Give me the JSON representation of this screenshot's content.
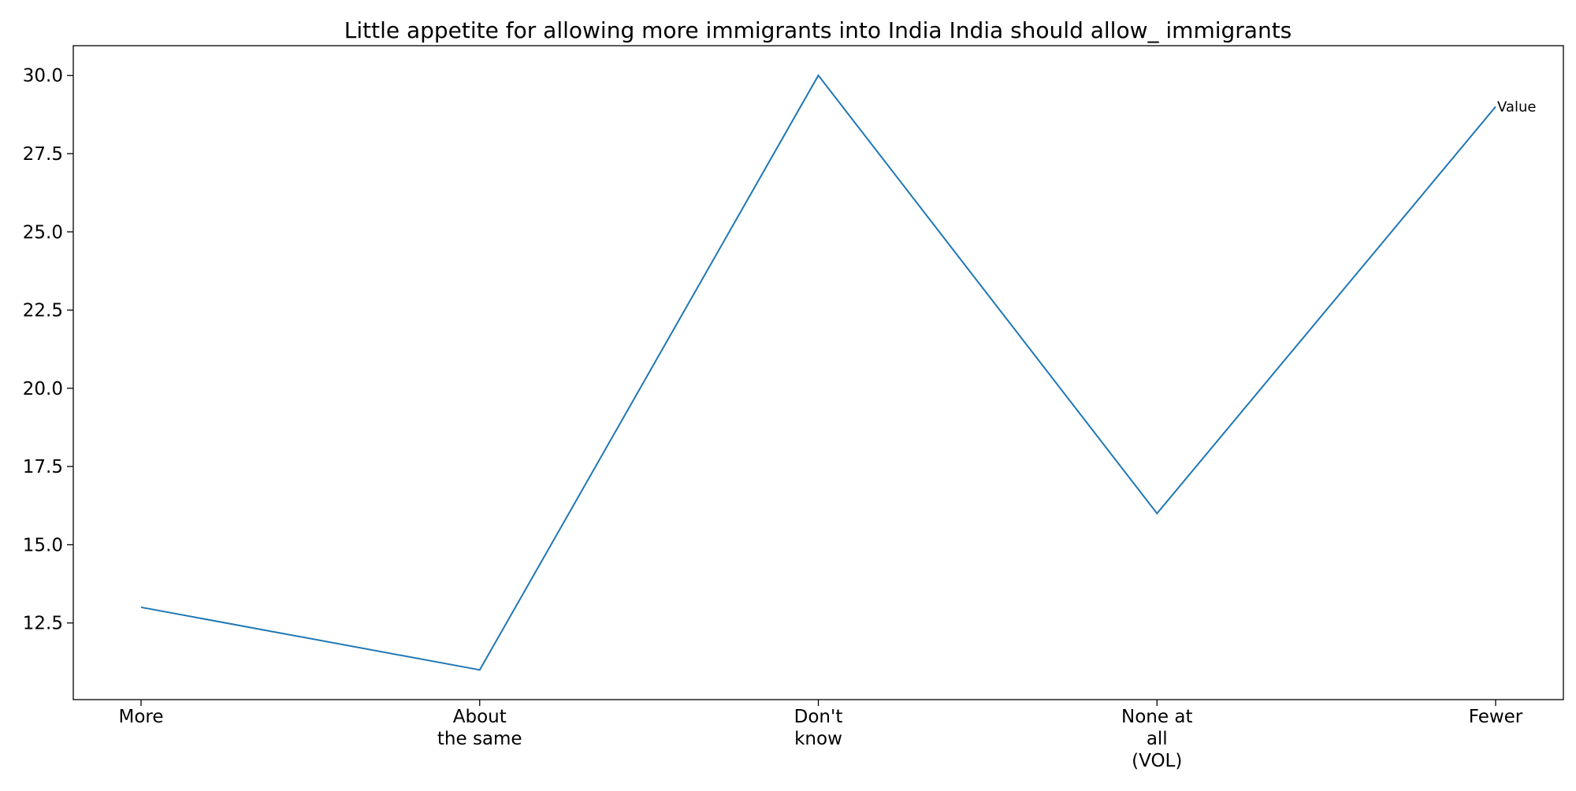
{
  "chart_data": {
    "type": "line",
    "title": "Little appetite for allowing more immigrants into India India should allow_ immigrants",
    "xlabel": "",
    "ylabel": "",
    "categories": [
      [
        "More"
      ],
      [
        "About",
        "the same"
      ],
      [
        "Don't",
        "know"
      ],
      [
        "None at",
        "all",
        "(VOL)"
      ],
      [
        "Fewer"
      ]
    ],
    "series": [
      {
        "name": "Value",
        "values": [
          13,
          11,
          30,
          16,
          29
        ],
        "color": "#1f77b4"
      }
    ],
    "ylim": [
      10.05,
      30.95
    ],
    "yticks": [
      12.5,
      15.0,
      17.5,
      20.0,
      22.5,
      25.0,
      27.5,
      30.0
    ],
    "ytick_labels": [
      "12.5",
      "15.0",
      "17.5",
      "20.0",
      "22.5",
      "25.0",
      "27.5",
      "30.0"
    ],
    "grid": false,
    "legend": "none"
  }
}
